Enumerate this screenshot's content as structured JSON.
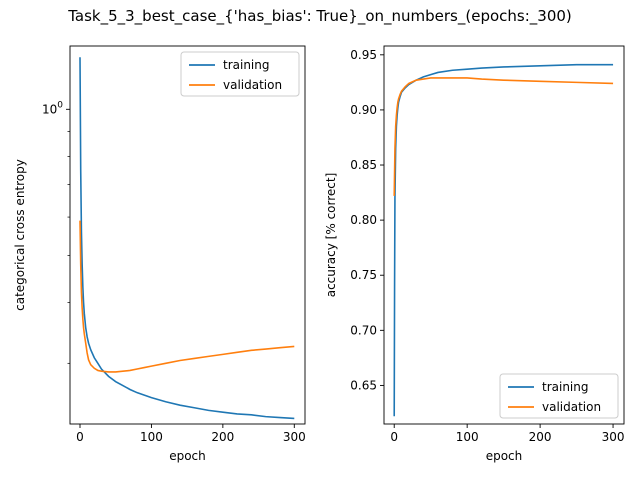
{
  "figure": {
    "suptitle": "Task_5_3_best_case_{'has_bias': True}_on_numbers_(epochs:_300)"
  },
  "colors": {
    "training": "#1f77b4",
    "validation": "#ff7f0e"
  },
  "chart_data": [
    {
      "type": "line",
      "title": "",
      "xlabel": "epoch",
      "ylabel": "categorical cross entropy",
      "yscale": "log",
      "xlim": [
        -14,
        315
      ],
      "ylim": [
        0.225,
        1.35
      ],
      "xticks": [
        0,
        100,
        200,
        300
      ],
      "xtick_labels": [
        "0",
        "100",
        "200",
        "300"
      ],
      "ytick_major": [
        1.0
      ],
      "ytick_labels": [
        "10^0"
      ],
      "ytick_base": "10",
      "ytick_exp": "0",
      "ytick_minor": [
        0.3,
        0.4,
        0.5,
        0.6,
        0.7,
        0.8,
        0.9
      ],
      "grid": false,
      "legend": "upper right",
      "series": [
        {
          "name": "training",
          "x": [
            0,
            1,
            2,
            3,
            4,
            5,
            6,
            8,
            10,
            12,
            15,
            20,
            25,
            30,
            40,
            50,
            60,
            70,
            80,
            90,
            100,
            120,
            140,
            160,
            180,
            200,
            220,
            240,
            260,
            280,
            300
          ],
          "y": [
            1.28,
            0.75,
            0.56,
            0.48,
            0.43,
            0.4,
            0.38,
            0.355,
            0.34,
            0.33,
            0.32,
            0.308,
            0.3,
            0.292,
            0.282,
            0.275,
            0.27,
            0.265,
            0.261,
            0.258,
            0.255,
            0.25,
            0.246,
            0.243,
            0.24,
            0.238,
            0.236,
            0.235,
            0.233,
            0.232,
            0.231
          ]
        },
        {
          "name": "validation",
          "x": [
            0,
            1,
            2,
            3,
            4,
            5,
            6,
            8,
            10,
            12,
            15,
            20,
            25,
            30,
            40,
            50,
            60,
            70,
            80,
            90,
            100,
            120,
            140,
            160,
            180,
            200,
            220,
            240,
            260,
            280,
            300
          ],
          "y": [
            0.59,
            0.48,
            0.42,
            0.39,
            0.37,
            0.355,
            0.345,
            0.33,
            0.315,
            0.305,
            0.298,
            0.293,
            0.29,
            0.289,
            0.288,
            0.288,
            0.289,
            0.29,
            0.292,
            0.294,
            0.296,
            0.3,
            0.304,
            0.307,
            0.31,
            0.313,
            0.316,
            0.319,
            0.321,
            0.323,
            0.325
          ]
        }
      ]
    },
    {
      "type": "line",
      "title": "",
      "xlabel": "epoch",
      "ylabel": "accuracy [% correct]",
      "xlim": [
        -14,
        315
      ],
      "ylim": [
        0.615,
        0.958
      ],
      "xticks": [
        0,
        100,
        200,
        300
      ],
      "xtick_labels": [
        "0",
        "100",
        "200",
        "300"
      ],
      "yticks": [
        0.65,
        0.7,
        0.75,
        0.8,
        0.85,
        0.9,
        0.95
      ],
      "ytick_labels": [
        "0.65",
        "0.70",
        "0.75",
        "0.80",
        "0.85",
        "0.90",
        "0.95"
      ],
      "grid": false,
      "legend": "lower right",
      "series": [
        {
          "name": "training",
          "x": [
            0,
            0.5,
            1,
            2,
            3,
            4,
            5,
            6,
            8,
            10,
            15,
            20,
            30,
            40,
            50,
            60,
            80,
            100,
            120,
            150,
            200,
            250,
            300
          ],
          "y": [
            0.622,
            0.74,
            0.82,
            0.865,
            0.885,
            0.895,
            0.902,
            0.907,
            0.912,
            0.916,
            0.92,
            0.923,
            0.927,
            0.93,
            0.932,
            0.934,
            0.936,
            0.937,
            0.938,
            0.939,
            0.94,
            0.941,
            0.941
          ]
        },
        {
          "name": "validation",
          "x": [
            0,
            1,
            2,
            3,
            4,
            5,
            6,
            8,
            10,
            15,
            20,
            30,
            40,
            50,
            60,
            80,
            100,
            120,
            150,
            200,
            250,
            300
          ],
          "y": [
            0.822,
            0.865,
            0.885,
            0.895,
            0.902,
            0.907,
            0.91,
            0.914,
            0.917,
            0.921,
            0.924,
            0.927,
            0.928,
            0.929,
            0.929,
            0.929,
            0.929,
            0.928,
            0.927,
            0.926,
            0.925,
            0.924
          ]
        }
      ]
    }
  ]
}
